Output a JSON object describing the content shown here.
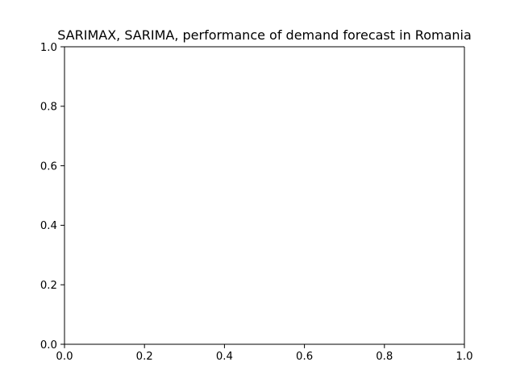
{
  "chart_data": {
    "type": "line",
    "title": "SARIMAX, SARIMA, performance of demand forecast in Romania",
    "xlabel": "",
    "ylabel": "",
    "xlim": [
      0.0,
      1.0
    ],
    "ylim": [
      0.0,
      1.0
    ],
    "x_ticks": [
      "0.0",
      "0.2",
      "0.4",
      "0.6",
      "0.8",
      "1.0"
    ],
    "y_ticks": [
      "0.0",
      "0.2",
      "0.4",
      "0.6",
      "0.8",
      "1.0"
    ],
    "series": [],
    "grid": false,
    "legend": "none"
  }
}
